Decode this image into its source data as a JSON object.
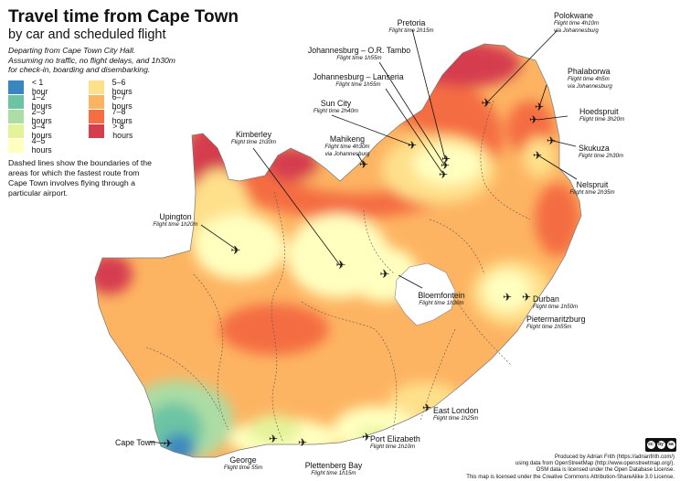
{
  "title": "Travel time from Cape Town",
  "subtitle": "by car and scheduled flight",
  "description": [
    "Departing from Cape Town City Hall.",
    "Assuming no traffic, no flight delays, and 1h30m",
    "for check-in, boarding and disembarking."
  ],
  "legend": [
    {
      "label": "< 1 hour",
      "color": "#3a87c0"
    },
    {
      "label": "1–2 hours",
      "color": "#6cc4a4"
    },
    {
      "label": "2–3 hours",
      "color": "#abdda4"
    },
    {
      "label": "3–4 hours",
      "color": "#e4f39a"
    },
    {
      "label": "4–5 hours",
      "color": "#ffffbf"
    },
    {
      "label": "5–6 hours",
      "color": "#fee08b"
    },
    {
      "label": "6–7 hours",
      "color": "#fdb462"
    },
    {
      "label": "7–8 hours",
      "color": "#f46d43"
    },
    {
      "label": "> 8 hours",
      "color": "#d53e4f"
    }
  ],
  "note": "Dashed lines show the boundaries of the areas for which the fastest route from Cape Town involves flying through a particular airport.",
  "places": {
    "polokwane": {
      "name": "Polokwane",
      "detail": "Flight time 4h10m",
      "detail2": "via Johannesburg"
    },
    "pretoria": {
      "name": "Pretoria",
      "detail": "Flight time 2h15m"
    },
    "jnb_tambo": {
      "name": "Johannesburg – O.R. Tambo",
      "detail": "Flight time 1h55m"
    },
    "jnb_lanseria": {
      "name": "Johannesburg – Lanseria",
      "detail": "Flight time 1h55m"
    },
    "phalaborwa": {
      "name": "Phalaborwa",
      "detail": "Flight time 4h5m",
      "detail2": "via Johannesburg"
    },
    "hoedspruit": {
      "name": "Hoedspruit",
      "detail": "Flight time 3h20m"
    },
    "sun_city": {
      "name": "Sun City",
      "detail": "Flight time 2h40m"
    },
    "skukuza": {
      "name": "Skukuza",
      "detail": "Flight time 2h30m"
    },
    "kimberley": {
      "name": "Kimberley",
      "detail": "Flight time 1h30m"
    },
    "mahikeng": {
      "name": "Mahikeng",
      "detail": "Flight time 4h30m",
      "detail2": "via Johannesburg"
    },
    "nelspruit": {
      "name": "Nelspruit",
      "detail": "Flight time 2h35m"
    },
    "upington": {
      "name": "Upington",
      "detail": "Flight time 1h20m"
    },
    "bloemfontein": {
      "name": "Bloemfontein",
      "detail": "Flight time 1h30m"
    },
    "durban": {
      "name": "Durban",
      "detail": "Flight time 1h50m"
    },
    "pietermaritzburg": {
      "name": "Pietermaritzburg",
      "detail": "Flight time 1h55m"
    },
    "east_london": {
      "name": "East London",
      "detail": "Flight time 1h25m"
    },
    "cape_town": {
      "name": "Cape Town"
    },
    "port_elizabeth": {
      "name": "Port Elizabeth",
      "detail": "Flight time 1h10m"
    },
    "george": {
      "name": "George",
      "detail": "Flight time 55m"
    },
    "plettenberg_bay": {
      "name": "Plettenberg Bay",
      "detail": "Flight time 1h15m"
    }
  },
  "credits": [
    "Produced by Adrian Frith (https://adrianfrith.com/)",
    "using data from OpenStreetMap (http://www.openstreetmap.org/).",
    "OSM data is licensed under the Open Database License.",
    "This map is licensed under the Creative Commons Attribution-ShareAlike 3.0 License."
  ],
  "license_badge": [
    "cc",
    "by",
    "sa"
  ]
}
